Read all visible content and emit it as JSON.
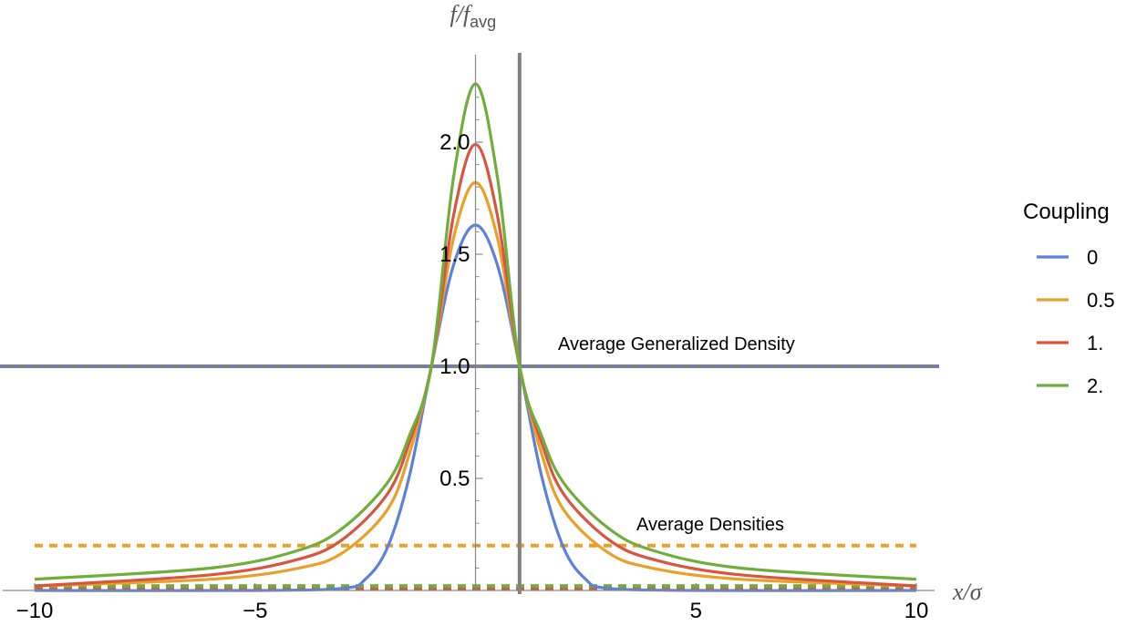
{
  "chart_data": {
    "type": "line",
    "xlabel_main": "x/σ",
    "ylabel_main": "f/f",
    "ylabel_sub": "avg",
    "xlim": [
      -10,
      10
    ],
    "ylim": [
      0,
      2.3
    ],
    "x_ticks": [
      -10,
      -5,
      5,
      10
    ],
    "x_tick_labels": [
      "−10",
      "−5",
      "5",
      "10"
    ],
    "y_ticks": [
      0.5,
      1.0,
      1.5,
      2.0
    ],
    "y_tick_labels": [
      "0.5",
      "1.0",
      "1.5",
      "2.0"
    ],
    "reference_lines": {
      "horizontal_y": 1.0,
      "vertical_x": 1.0,
      "color": "#808080"
    },
    "annotations": [
      {
        "text": "Average Generalized Density",
        "x": 4.5,
        "y": 1.05
      },
      {
        "text": "Average  Densities",
        "x": 4.5,
        "y": 0.25
      }
    ],
    "legend": {
      "title": "Coupling",
      "placement": "right"
    },
    "series": [
      {
        "name": "0",
        "color": "#5E81D8",
        "x": [
          -10,
          -5,
          -3,
          -2.5,
          -2,
          -1.5,
          -1,
          -0.5,
          0,
          0.5,
          1,
          1.5,
          2,
          2.5,
          3,
          5,
          10
        ],
        "y": [
          0.0,
          0.0,
          0.01,
          0.05,
          0.19,
          0.51,
          1.0,
          1.45,
          1.63,
          1.45,
          1.0,
          0.51,
          0.19,
          0.05,
          0.01,
          0.0,
          0.0
        ],
        "avg_density": 0.01
      },
      {
        "name": "0.5",
        "color": "#E9A02A",
        "x": [
          -10,
          -6,
          -4,
          -3,
          -2,
          -1.5,
          -1,
          -0.5,
          0,
          0.5,
          1,
          1.5,
          2,
          3,
          4,
          6,
          10
        ],
        "y": [
          0.02,
          0.05,
          0.1,
          0.17,
          0.36,
          0.61,
          1.0,
          1.57,
          1.82,
          1.57,
          1.0,
          0.61,
          0.36,
          0.17,
          0.1,
          0.05,
          0.02
        ],
        "avg_density": 0.2
      },
      {
        "name": "1.",
        "color": "#D9553F",
        "x": [
          -10,
          -6,
          -4,
          -3,
          -2,
          -1.5,
          -1,
          -0.5,
          0,
          0.5,
          1,
          1.5,
          2,
          3,
          4,
          6,
          10
        ],
        "y": [
          0.02,
          0.07,
          0.14,
          0.23,
          0.43,
          0.66,
          1.0,
          1.67,
          1.99,
          1.67,
          1.0,
          0.66,
          0.43,
          0.23,
          0.14,
          0.07,
          0.02
        ],
        "avg_density": 0.01
      },
      {
        "name": "2.",
        "color": "#6FAE3A",
        "x": [
          -10,
          -6,
          -4,
          -3,
          -2,
          -1.5,
          -1,
          -0.5,
          0,
          0.5,
          1,
          1.5,
          2,
          3,
          4,
          6,
          10
        ],
        "y": [
          0.05,
          0.1,
          0.18,
          0.28,
          0.48,
          0.69,
          1.0,
          1.84,
          2.26,
          1.84,
          1.0,
          0.69,
          0.48,
          0.28,
          0.18,
          0.1,
          0.05
        ],
        "avg_density": 0.02
      }
    ]
  }
}
